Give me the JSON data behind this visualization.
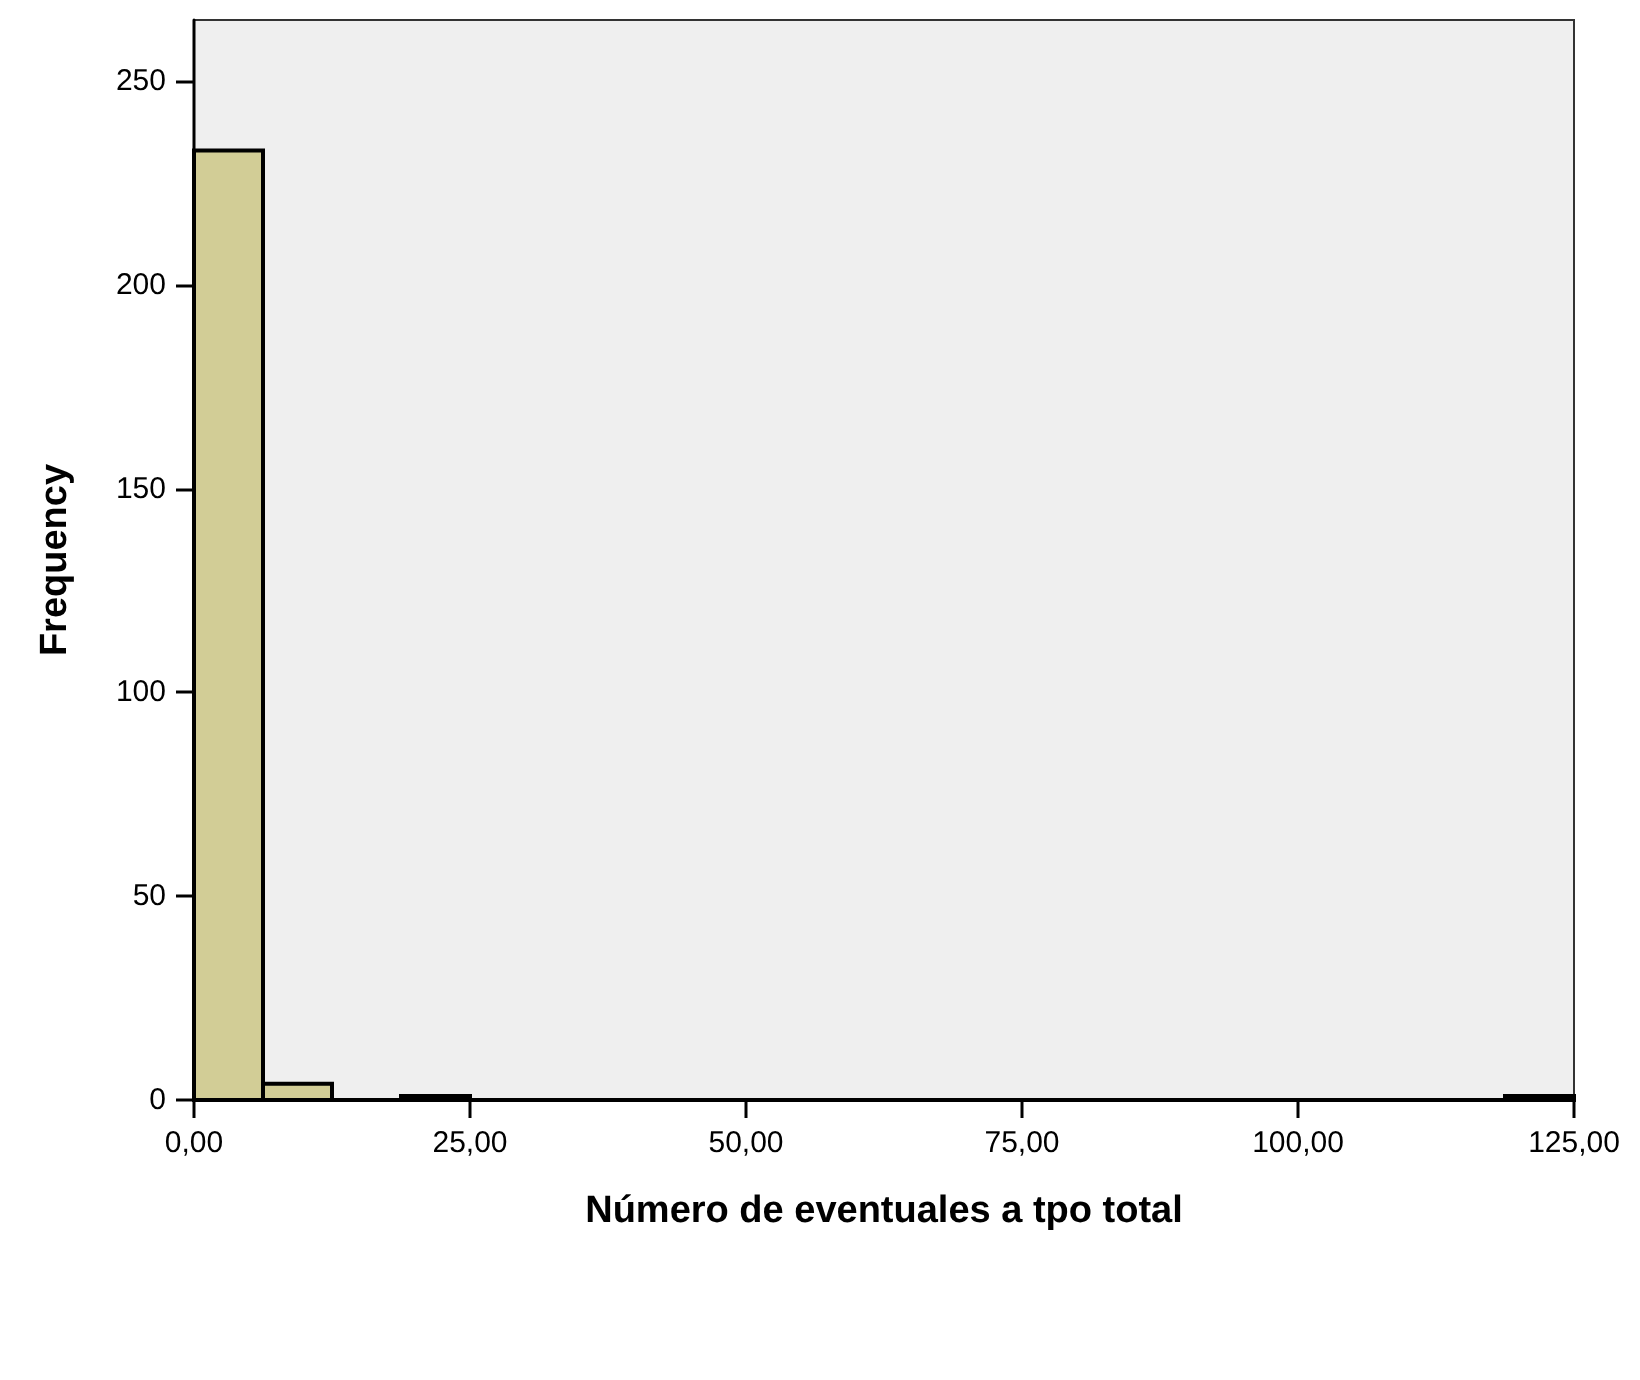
{
  "chart_data": {
    "type": "histogram",
    "xlabel": "Número de eventuales a tpo total",
    "ylabel": "Frequency",
    "bins": [
      0,
      6.25,
      12.5,
      18.75,
      25,
      31.25,
      37.5,
      43.75,
      50,
      56.25,
      62.5,
      68.75,
      75,
      81.25,
      87.5,
      93.75,
      100,
      106.25,
      112.5,
      118.75,
      125
    ],
    "values": [
      233,
      4,
      0,
      1,
      0,
      0,
      0,
      0,
      0,
      0,
      0,
      0,
      0,
      0,
      0,
      0,
      0,
      0,
      0,
      1
    ],
    "color": "#d2cd96",
    "xlim": [
      0,
      125
    ],
    "xticks": [
      {
        "value": 0,
        "label": "0,00"
      },
      {
        "value": 25,
        "label": "25,00"
      },
      {
        "value": 50,
        "label": "50,00"
      },
      {
        "value": 75,
        "label": "75,00"
      },
      {
        "value": 100,
        "label": "100,00"
      },
      {
        "value": 125,
        "label": "125,00"
      }
    ],
    "ylim": [
      0,
      265
    ],
    "yticks": [
      0,
      50,
      100,
      150,
      200,
      250
    ],
    "grid": false
  }
}
